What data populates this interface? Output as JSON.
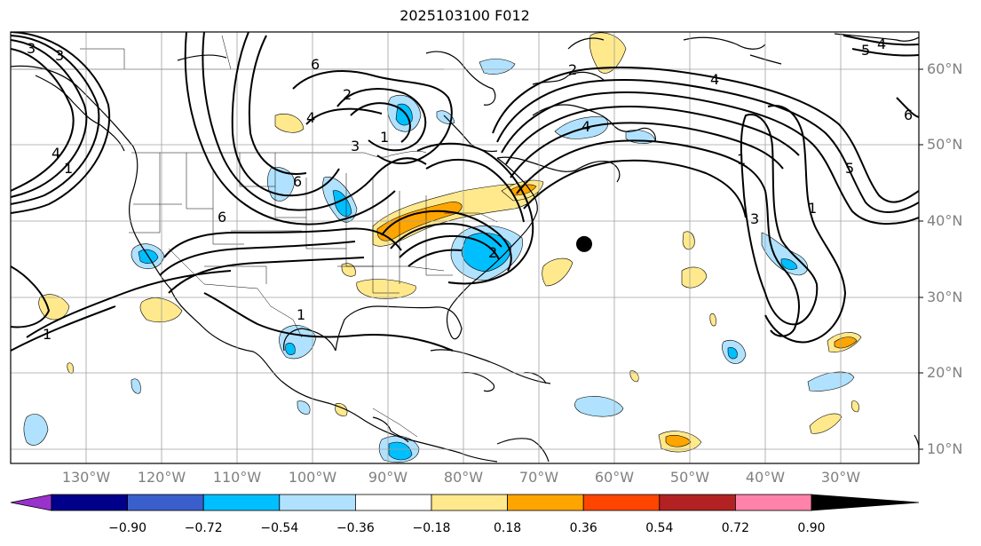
{
  "title": "2025103100 F012",
  "lat_labels": [
    "60°N",
    "50°N",
    "40°N",
    "30°N",
    "20°N",
    "10°N"
  ],
  "lon_labels": [
    "130°W",
    "120°W",
    "110°W",
    "100°W",
    "90°W",
    "80°W",
    "70°W",
    "60°W",
    "50°W",
    "40°W",
    "30°W"
  ],
  "colorbar": {
    "labels": [
      "−0.90",
      "−0.72",
      "−0.54",
      "−0.36",
      "−0.18",
      "0.18",
      "0.36",
      "0.54",
      "0.72",
      "0.90"
    ],
    "colors": [
      "#9932cc",
      "#00008b",
      "#3a5fcd",
      "#00bfff",
      "#b0e2ff",
      "#ffffff",
      "#ffe98c",
      "#ffa500",
      "#ff4500",
      "#b22222",
      "#ff82ab"
    ]
  },
  "map": {
    "lon_range": [
      -140,
      -25
    ],
    "lat_range": [
      8,
      65
    ],
    "contour_labels": [
      "3",
      "3",
      "4",
      "1",
      "6",
      "2",
      "4",
      "1",
      "6",
      "6",
      "3",
      "1",
      "1",
      "4",
      "4",
      "1",
      "3",
      "1",
      "5",
      "5",
      "4",
      "6",
      "2",
      "2"
    ],
    "marker": {
      "lon": -64,
      "lat": 37,
      "color": "#000000"
    }
  },
  "colors": {
    "land_outline": "#000000",
    "grid": "#a0a0a0",
    "contour": "#000000",
    "label_grey": "#808080"
  }
}
